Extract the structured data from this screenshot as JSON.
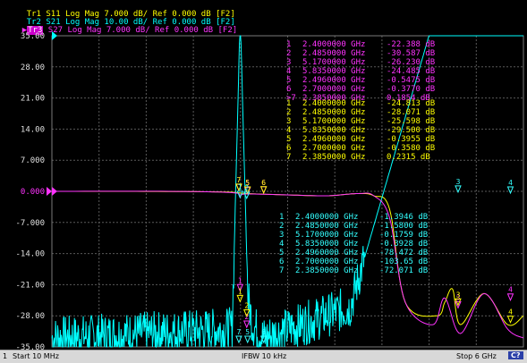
{
  "traces": [
    {
      "id": "Tr1",
      "param": "S11",
      "format": "Log Mag",
      "scale": "7.000 dB/",
      "ref": "Ref 0.000 dB",
      "port": "[F2]",
      "color": "#ffff00"
    },
    {
      "id": "Tr2",
      "param": "S21",
      "format": "Log Mag",
      "scale": "10.00 dB/",
      "ref": "Ref 0.000 dB",
      "port": "[F2]",
      "color": "#00ffff"
    },
    {
      "id": "Tr3",
      "param": "S27",
      "format": "Log Mag",
      "scale": "7.000 dB/",
      "ref": "Ref 0.000 dB",
      "port": "[F2]",
      "color": "#ff33ff"
    }
  ],
  "status": {
    "channel": "1",
    "start": "Start 10 MHz",
    "ifbw": "IFBW 10 kHz",
    "stop": "Stop 6 GHz",
    "badge": "C?"
  },
  "chart_data": {
    "type": "line",
    "xlim": [
      0.01,
      6.0
    ],
    "xunit": "GHz",
    "ylim": [
      -35,
      35
    ],
    "grid": true,
    "y_ticks": [
      "35.00",
      "28.00",
      "21.00",
      "14.00",
      "7.000",
      "0.000",
      "-7.000",
      "-14.00",
      "-21.00",
      "-28.00",
      "-35.00"
    ],
    "reference_marker": "0.000",
    "colors": {
      "s11": "#ffff00",
      "s21": "#00ffff",
      "s27": "#ff33ff",
      "grid": "#5a5a5a"
    },
    "series": [
      {
        "name": "S11",
        "color": "#ffff00",
        "x": [
          0.01,
          1.0,
          2.0,
          2.3,
          2.5,
          3.0,
          3.5,
          3.9,
          4.1,
          4.3,
          4.5,
          4.9,
          5.0,
          5.1,
          5.2,
          5.5,
          5.8,
          6.0
        ],
        "y": [
          0,
          0,
          -0.1,
          -0.2,
          -0.5,
          -0.8,
          -1.0,
          -0.5,
          -1,
          -4,
          -25,
          -28,
          -25,
          -22,
          -30,
          -23,
          -30,
          -28
        ]
      },
      {
        "name": "S21",
        "color": "#00ffff",
        "x": [
          0.01,
          2.3,
          2.395,
          2.41,
          2.5,
          2.56,
          2.7,
          3.8,
          4.8,
          5.1,
          5.6,
          6.0
        ],
        "y": [
          -33,
          -31,
          35,
          35,
          -24,
          -30,
          -33,
          -26,
          35,
          35,
          35,
          35
        ]
      },
      {
        "name": "S27",
        "color": "#ff33ff",
        "x": [
          0.01,
          1.5,
          2.3,
          2.4,
          2.48,
          3.0,
          3.5,
          3.9,
          4.1,
          4.3,
          4.5,
          4.85,
          5.0,
          5.2,
          5.5,
          5.8,
          6.0
        ],
        "y": [
          0,
          0,
          -0.3,
          -1.0,
          -0.6,
          -0.8,
          -1.0,
          -0.5,
          -1.0,
          -6,
          -25,
          -30,
          -24,
          -32,
          -23,
          -31,
          -33
        ]
      }
    ],
    "marker_tables": [
      {
        "trace": "S27",
        "color": "#ff33ff",
        "rows": [
          {
            "n": "1",
            "freq": "2.4000000 GHz",
            "val": "-22.388 dB"
          },
          {
            "n": "2",
            "freq": "2.4850000 GHz",
            "val": "-30.587 dB"
          },
          {
            "n": "3",
            "freq": "5.1700000 GHz",
            "val": "-26.230 dB"
          },
          {
            "n": "4",
            "freq": "5.8350000 GHz",
            "val": "-24.485 dB"
          },
          {
            "n": "5",
            "freq": "2.4960000 GHz",
            "val": "-0.5475 dB"
          },
          {
            "n": "6",
            "freq": "2.7000000 GHz",
            "val": "-0.3770 dB"
          },
          {
            "n": ">7",
            "freq": "2.3850000 GHz",
            "val": "0.1854 dB"
          }
        ]
      },
      {
        "trace": "S11",
        "color": "#ffff00",
        "rows": [
          {
            "n": "1",
            "freq": "2.4000000 GHz",
            "val": "-24.813 dB"
          },
          {
            "n": "2",
            "freq": "2.4850000 GHz",
            "val": "-28.071 dB"
          },
          {
            "n": "3",
            "freq": "5.1700000 GHz",
            "val": "-25.598 dB"
          },
          {
            "n": "4",
            "freq": "5.8350000 GHz",
            "val": "-29.500 dB"
          },
          {
            "n": "5",
            "freq": "2.4960000 GHz",
            "val": "-0.3955 dB"
          },
          {
            "n": "6",
            "freq": "2.7000000 GHz",
            "val": "-0.3580 dB"
          },
          {
            "n": "7",
            "freq": "2.3850000 GHz",
            "val": "0.2315 dB"
          }
        ]
      },
      {
        "trace": "S21",
        "color": "#33ffff",
        "rows": [
          {
            "n": "1",
            "freq": "2.4000000 GHz",
            "val": "-1.3946 dB"
          },
          {
            "n": "2",
            "freq": "2.4850000 GHz",
            "val": "-1.5800 dB"
          },
          {
            "n": "3",
            "freq": "5.1700000 GHz",
            "val": "-0.1759 dB"
          },
          {
            "n": "4",
            "freq": "5.8350000 GHz",
            "val": "-0.3928 dB"
          },
          {
            "n": "5",
            "freq": "2.4960000 GHz",
            "val": "-78.472 dB"
          },
          {
            "n": "6",
            "freq": "2.7000000 GHz",
            "val": "-103.65 dB"
          },
          {
            "n": "7",
            "freq": "2.3850000 GHz",
            "val": "-72.071 dB"
          }
        ]
      }
    ]
  }
}
